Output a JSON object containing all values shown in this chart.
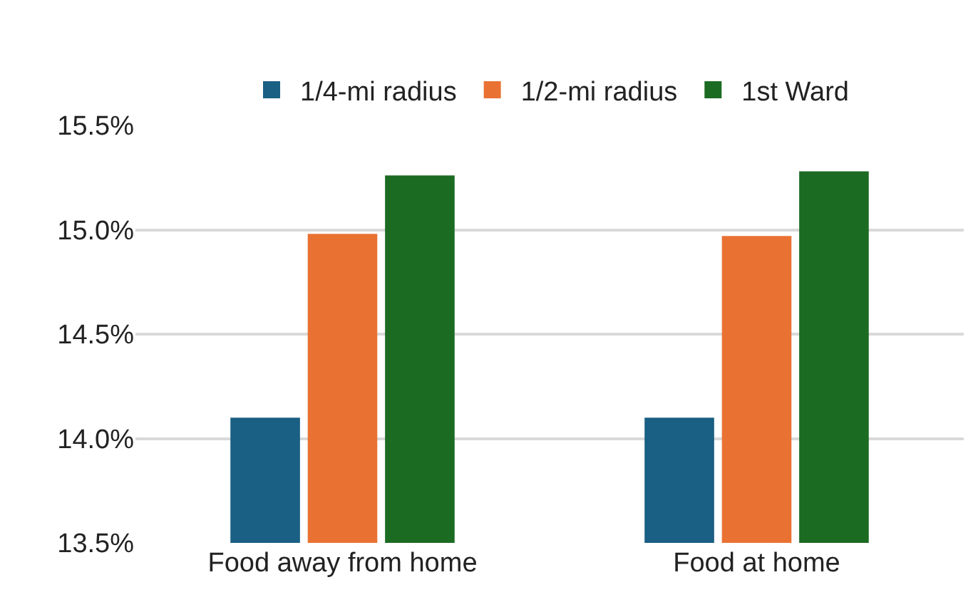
{
  "chart_data": {
    "type": "bar",
    "categories": [
      "Food away from home",
      "Food at home"
    ],
    "series": [
      {
        "name": "1/4-mi radius",
        "color": "#1a5f84",
        "values": [
          14.1,
          14.1
        ]
      },
      {
        "name": "1/2-mi radius",
        "color": "#e97233",
        "values": [
          14.98,
          14.97
        ]
      },
      {
        "name": "1st Ward",
        "color": "#1c6b22",
        "values": [
          15.26,
          15.28
        ]
      }
    ],
    "ylim": [
      13.5,
      15.5
    ],
    "yticks": [
      {
        "value": 13.5,
        "label": "13.5%"
      },
      {
        "value": 14.0,
        "label": "14.0%"
      },
      {
        "value": 14.5,
        "label": "14.5%"
      },
      {
        "value": 15.0,
        "label": "15.0%"
      },
      {
        "value": 15.5,
        "label": "15.5%"
      }
    ],
    "grid": "y",
    "legend": "top"
  }
}
